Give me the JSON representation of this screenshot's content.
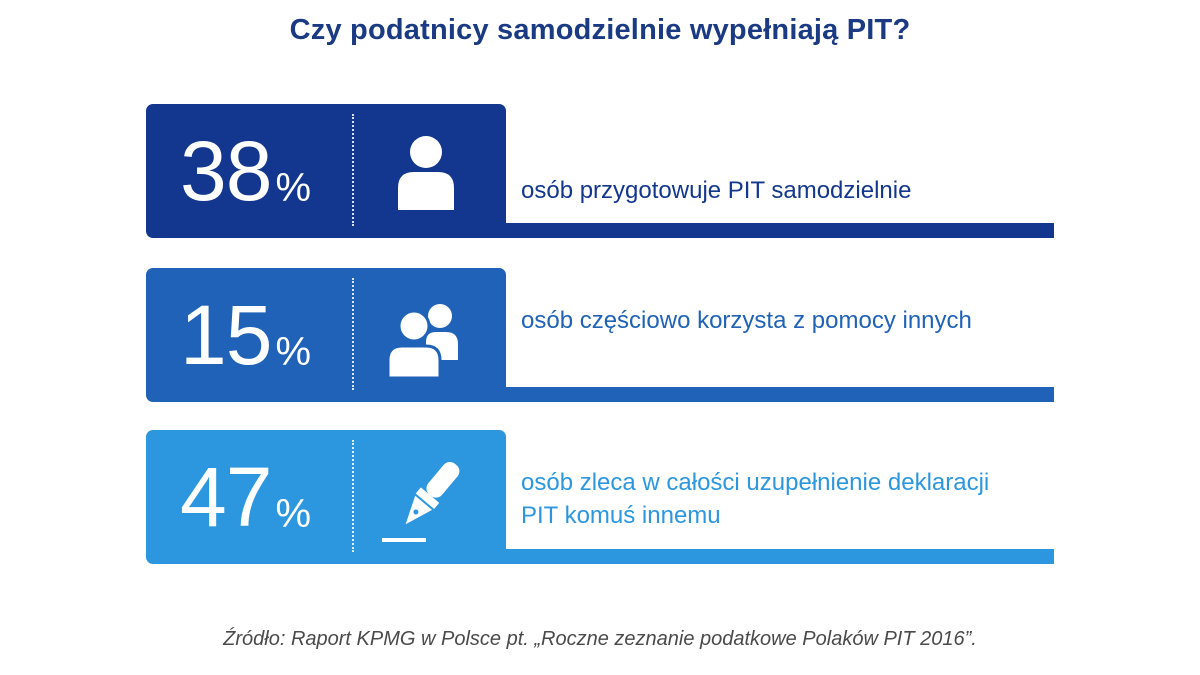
{
  "title": "Czy podatnicy samodzielnie wypełniają PIT?",
  "colors": {
    "title": "#1b3a84",
    "row1": "#13378f",
    "row2": "#1f62b8",
    "row3": "#2c97de",
    "source": "#4a4a4a"
  },
  "rows": [
    {
      "value": "38",
      "unit": "%",
      "icon": "person-icon",
      "text": "osób przygotowuje PIT samodzielnie"
    },
    {
      "value": "15",
      "unit": "%",
      "icon": "people-icon",
      "text": "osób częściowo korzysta z pomocy innych"
    },
    {
      "value": "47",
      "unit": "%",
      "icon": "pen-icon",
      "text": "osób zleca w całości uzupełnienie deklaracji PIT komuś innemu"
    }
  ],
  "source": "Źródło: Raport KPMG w Polsce pt. „Roczne zeznanie podatkowe Polaków PIT 2016”."
}
